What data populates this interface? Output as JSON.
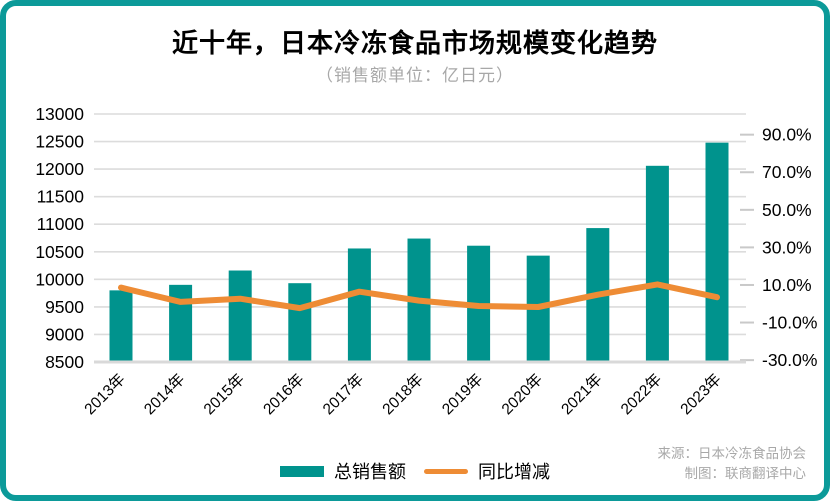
{
  "header": {
    "title": "近十年，日本冷冻食品市场规模变化趋势",
    "subtitle": "（销售额单位：亿日元）"
  },
  "chart_data": {
    "type": "combo-bar-line",
    "title": "近十年，日本冷冻食品市场规模变化趋势",
    "subtitle": "（销售额单位：亿日元）",
    "categories": [
      "2013年",
      "2014年",
      "2015年",
      "2016年",
      "2017年",
      "2018年",
      "2019年",
      "2020年",
      "2021年",
      "2022年",
      "2023年"
    ],
    "series": [
      {
        "name": "总销售额",
        "chart": "bar",
        "axis": "left",
        "unit": "亿日元",
        "color": "#00938D",
        "values": [
          9800,
          9900,
          10160,
          9930,
          10560,
          10740,
          10610,
          10430,
          10930,
          12060,
          12480
        ]
      },
      {
        "name": "同比增减",
        "chart": "line",
        "axis": "right",
        "unit": "%",
        "color": "#EE8C35",
        "values": [
          8.6,
          1.0,
          2.7,
          -2.3,
          6.4,
          1.7,
          -1.2,
          -1.7,
          4.8,
          10.3,
          3.5
        ]
      }
    ],
    "left_axis": {
      "min": 8500,
      "max": 13000,
      "tick_step": 500,
      "ticks": [
        13000,
        12500,
        12000,
        11500,
        11000,
        10500,
        10000,
        9500,
        9000,
        8500
      ]
    },
    "right_axis": {
      "ticks": [
        90,
        70,
        50,
        30,
        10,
        -10,
        -30
      ],
      "tick_step": 20,
      "label_format": "percent_1dp",
      "ylim": [
        -31,
        101
      ]
    },
    "grid": true,
    "legend_position": "bottom-center"
  },
  "legend": {
    "bar_label": "总销售额",
    "line_label": "同比增减"
  },
  "footer": {
    "source": "来源：日本冷冻食品协会",
    "credit": "制图：联商翻译中心"
  },
  "colors": {
    "border": "#0C9A99",
    "bar": "#00938D",
    "line": "#EE8C35",
    "grid": "#DCDCDC",
    "axis_line": "#D9D9D9",
    "tick_mark": "#C9C9C9",
    "axis_text": "#000000",
    "muted_text": "#A8A8A8"
  }
}
